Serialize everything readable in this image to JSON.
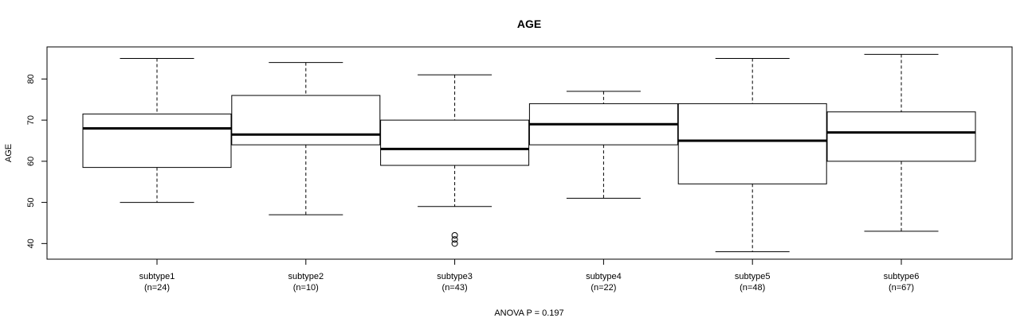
{
  "chart_data": {
    "type": "boxplot",
    "title": "AGE",
    "xlabel": "ANOVA P = 0.197",
    "ylabel": "AGE",
    "ylim": [
      36.2,
      87.8
    ],
    "yticks": [
      40,
      50,
      60,
      70,
      80
    ],
    "colors": {
      "stroke": "#000000",
      "background": "#ffffff"
    },
    "groups": [
      {
        "name": "subtype1",
        "count": "(n=24)",
        "min": 50,
        "q1": 58.5,
        "median": 68,
        "q3": 71.5,
        "max": 85,
        "outliers": []
      },
      {
        "name": "subtype2",
        "count": "(n=10)",
        "min": 47,
        "q1": 64,
        "median": 66.5,
        "q3": 76,
        "max": 84,
        "outliers": []
      },
      {
        "name": "subtype3",
        "count": "(n=43)",
        "min": 49,
        "q1": 59,
        "median": 63,
        "q3": 70,
        "max": 81,
        "outliers": [
          40,
          41,
          42
        ]
      },
      {
        "name": "subtype4",
        "count": "(n=22)",
        "min": 51,
        "q1": 64,
        "median": 69,
        "q3": 74,
        "max": 77,
        "outliers": []
      },
      {
        "name": "subtype5",
        "count": "(n=48)",
        "min": 38,
        "q1": 54.5,
        "median": 65,
        "q3": 74,
        "max": 85,
        "outliers": []
      },
      {
        "name": "subtype6",
        "count": "(n=67)",
        "min": 43,
        "q1": 60,
        "median": 67,
        "q3": 72,
        "max": 86,
        "outliers": []
      }
    ]
  }
}
